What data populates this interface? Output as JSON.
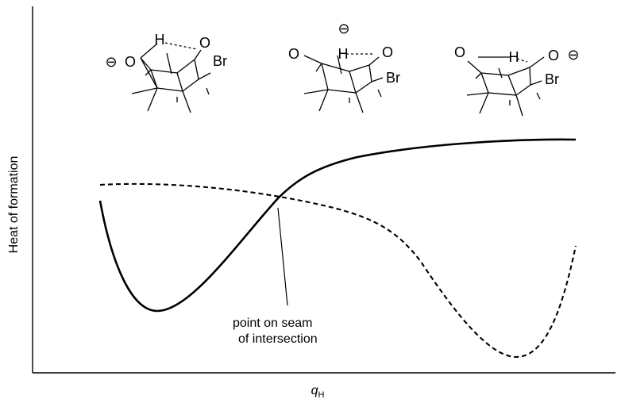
{
  "axes": {
    "ylabel": "Heat of formation",
    "xlabel_main": "q",
    "xlabel_sub": "H"
  },
  "annotation": {
    "line1": "point on seam",
    "line2": "of intersection"
  },
  "structures": [
    {
      "charge": "⊖",
      "atoms": {
        "O_left": "O",
        "H": "H",
        "O_right": "O",
        "Br": "Br"
      }
    },
    {
      "charge": "⊖",
      "atoms": {
        "O_left": "O",
        "H": "H",
        "O_right": "O",
        "Br": "Br"
      }
    },
    {
      "charge": "⊖",
      "atoms": {
        "O_left": "O",
        "H": "H",
        "O_right": "O",
        "Br": "Br"
      }
    }
  ],
  "curves": [
    {
      "style": "solid",
      "color": "#000000"
    },
    {
      "style": "dashed",
      "color": "#000000"
    }
  ]
}
